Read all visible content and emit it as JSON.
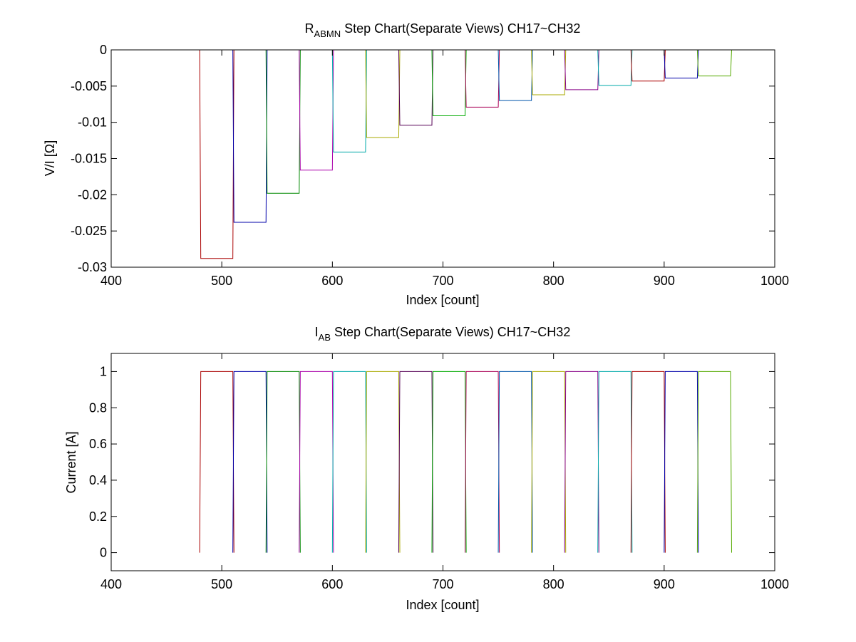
{
  "chart_data": [
    {
      "type": "line",
      "step": true,
      "title": {
        "main": "R",
        "sub": "ABMN",
        "rest": " Step Chart(Separate Views) CH17~CH32"
      },
      "xlabel": "Index [count]",
      "ylabel": "V/I [Ω]",
      "xlim": [
        400,
        1000
      ],
      "ylim": [
        -0.03,
        0
      ],
      "xticks": [
        400,
        500,
        600,
        700,
        800,
        900,
        1000
      ],
      "xtick_labels": [
        "400",
        "500",
        "600",
        "700",
        "800",
        "900",
        "1000"
      ],
      "yticks": [
        0,
        -0.005,
        -0.01,
        -0.015,
        -0.02,
        -0.025,
        -0.03
      ],
      "ytick_labels": [
        "0",
        "-0.005",
        "-0.01",
        "-0.015",
        "-0.02",
        "-0.025",
        "-0.03"
      ],
      "grid": false,
      "series": [
        {
          "color": "#aa0000",
          "x": [
            480,
            481,
            510,
            511
          ],
          "y": [
            0,
            -0.0288,
            -0.0288,
            0
          ]
        },
        {
          "color": "#0000aa",
          "x": [
            510,
            511,
            540,
            541
          ],
          "y": [
            0,
            -0.0238,
            -0.0238,
            0
          ]
        },
        {
          "color": "#008800",
          "x": [
            540,
            541,
            570,
            571
          ],
          "y": [
            0,
            -0.0198,
            -0.0198,
            0
          ]
        },
        {
          "color": "#aa00aa",
          "x": [
            570,
            571,
            600,
            601
          ],
          "y": [
            0,
            -0.0166,
            -0.0166,
            0
          ]
        },
        {
          "color": "#00aaaa",
          "x": [
            600,
            601,
            630,
            631
          ],
          "y": [
            0,
            -0.0141,
            -0.0141,
            0
          ]
        },
        {
          "color": "#aaaa00",
          "x": [
            630,
            631,
            660,
            661
          ],
          "y": [
            0,
            -0.0121,
            -0.0121,
            0
          ]
        },
        {
          "color": "#550055",
          "x": [
            660,
            661,
            690,
            691
          ],
          "y": [
            0,
            -0.0104,
            -0.0104,
            0
          ]
        },
        {
          "color": "#00aa00",
          "x": [
            690,
            691,
            720,
            721
          ],
          "y": [
            0,
            -0.0091,
            -0.0091,
            0
          ]
        },
        {
          "color": "#aa0055",
          "x": [
            720,
            721,
            750,
            751
          ],
          "y": [
            0,
            -0.0079,
            -0.0079,
            0
          ]
        },
        {
          "color": "#0055aa",
          "x": [
            750,
            751,
            780,
            781
          ],
          "y": [
            0,
            -0.007,
            -0.007,
            0
          ]
        },
        {
          "color": "#aaaa00",
          "x": [
            780,
            781,
            810,
            811
          ],
          "y": [
            0,
            -0.0062,
            -0.0062,
            0
          ]
        },
        {
          "color": "#880088",
          "x": [
            810,
            811,
            840,
            841
          ],
          "y": [
            0,
            -0.0055,
            -0.0055,
            0
          ]
        },
        {
          "color": "#00aaaa",
          "x": [
            840,
            841,
            870,
            871
          ],
          "y": [
            0,
            -0.0049,
            -0.0049,
            0
          ]
        },
        {
          "color": "#aa0000",
          "x": [
            870,
            871,
            900,
            901
          ],
          "y": [
            0,
            -0.0043,
            -0.0043,
            0
          ]
        },
        {
          "color": "#0000aa",
          "x": [
            900,
            901,
            930,
            931
          ],
          "y": [
            0,
            -0.0039,
            -0.0039,
            0
          ]
        },
        {
          "color": "#55aa00",
          "x": [
            930,
            931,
            960,
            961
          ],
          "y": [
            0,
            -0.0036,
            -0.0036,
            0
          ]
        }
      ]
    },
    {
      "type": "line",
      "step": true,
      "title": {
        "main": "I",
        "sub": "AB",
        "rest": " Step Chart(Separate Views) CH17~CH32"
      },
      "xlabel": "Index [count]",
      "ylabel": "Current [A]",
      "xlim": [
        400,
        1000
      ],
      "ylim": [
        -0.1,
        1.1
      ],
      "xticks": [
        400,
        500,
        600,
        700,
        800,
        900,
        1000
      ],
      "xtick_labels": [
        "400",
        "500",
        "600",
        "700",
        "800",
        "900",
        "1000"
      ],
      "yticks": [
        0,
        0.2,
        0.4,
        0.6,
        0.8,
        1
      ],
      "ytick_labels": [
        "0",
        "0.2",
        "0.4",
        "0.6",
        "0.8",
        "1"
      ],
      "grid": false,
      "series": [
        {
          "color": "#aa0000",
          "x": [
            480,
            481,
            510,
            511
          ],
          "y": [
            0,
            1,
            1,
            0
          ]
        },
        {
          "color": "#0000aa",
          "x": [
            510,
            511,
            540,
            541
          ],
          "y": [
            0,
            1,
            1,
            0
          ]
        },
        {
          "color": "#008800",
          "x": [
            540,
            541,
            570,
            571
          ],
          "y": [
            0,
            1,
            1,
            0
          ]
        },
        {
          "color": "#aa00aa",
          "x": [
            570,
            571,
            600,
            601
          ],
          "y": [
            0,
            1,
            1,
            0
          ]
        },
        {
          "color": "#00aaaa",
          "x": [
            600,
            601,
            630,
            631
          ],
          "y": [
            0,
            1,
            1,
            0
          ]
        },
        {
          "color": "#aaaa00",
          "x": [
            630,
            631,
            660,
            661
          ],
          "y": [
            0,
            1,
            1,
            0
          ]
        },
        {
          "color": "#550055",
          "x": [
            660,
            661,
            690,
            691
          ],
          "y": [
            0,
            1,
            1,
            0
          ]
        },
        {
          "color": "#00aa00",
          "x": [
            690,
            691,
            720,
            721
          ],
          "y": [
            0,
            1,
            1,
            0
          ]
        },
        {
          "color": "#aa0055",
          "x": [
            720,
            721,
            750,
            751
          ],
          "y": [
            0,
            1,
            1,
            0
          ]
        },
        {
          "color": "#0055aa",
          "x": [
            750,
            751,
            780,
            781
          ],
          "y": [
            0,
            1,
            1,
            0
          ]
        },
        {
          "color": "#aaaa00",
          "x": [
            780,
            781,
            810,
            811
          ],
          "y": [
            0,
            1,
            1,
            0
          ]
        },
        {
          "color": "#880088",
          "x": [
            810,
            811,
            840,
            841
          ],
          "y": [
            0,
            1,
            1,
            0
          ]
        },
        {
          "color": "#00aaaa",
          "x": [
            840,
            841,
            870,
            871
          ],
          "y": [
            0,
            1,
            1,
            0
          ]
        },
        {
          "color": "#aa0000",
          "x": [
            870,
            871,
            900,
            901
          ],
          "y": [
            0,
            1,
            1,
            0
          ]
        },
        {
          "color": "#0000aa",
          "x": [
            900,
            901,
            930,
            931
          ],
          "y": [
            0,
            1,
            1,
            0
          ]
        },
        {
          "color": "#55aa00",
          "x": [
            930,
            931,
            960,
            961
          ],
          "y": [
            0,
            1,
            1,
            0
          ]
        }
      ]
    }
  ]
}
